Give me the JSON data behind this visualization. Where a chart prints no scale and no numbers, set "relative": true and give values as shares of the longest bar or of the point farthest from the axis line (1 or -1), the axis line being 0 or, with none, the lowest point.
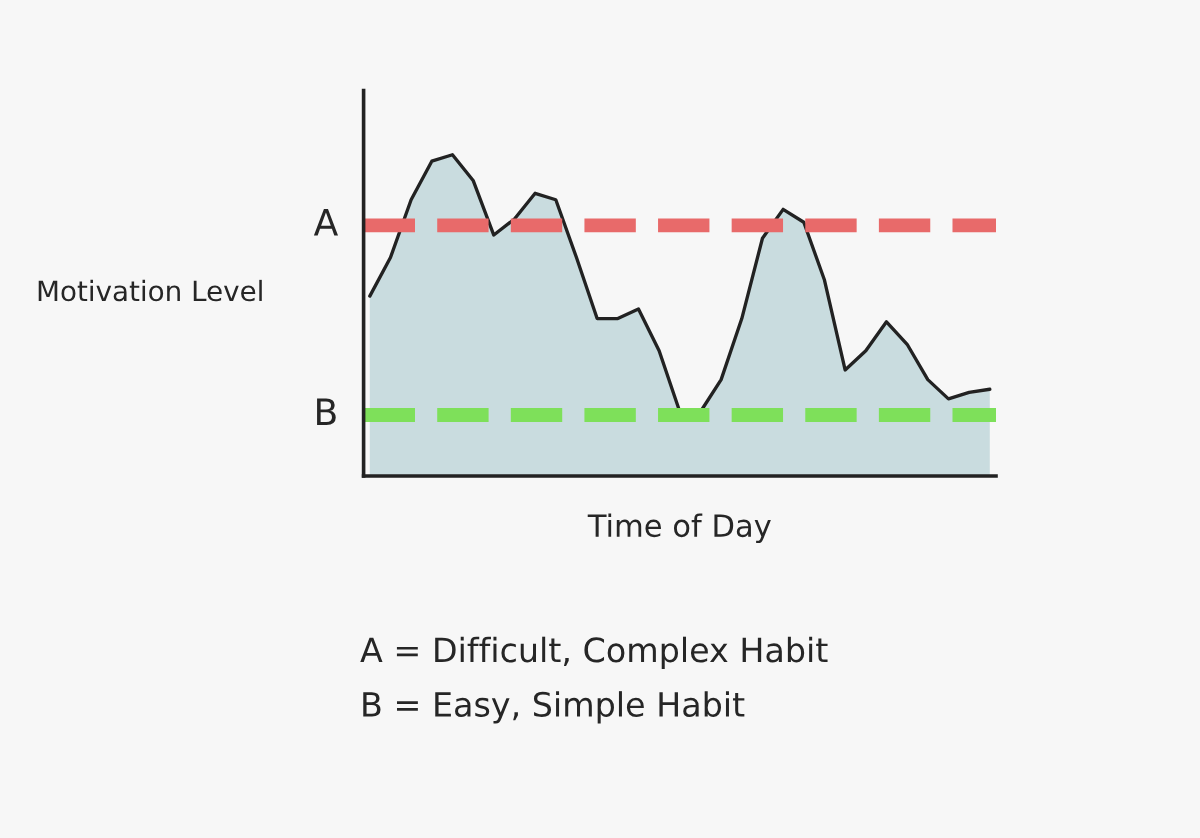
{
  "chart_data": {
    "type": "area",
    "relative": true,
    "xlabel": "Time of Day",
    "ylabel": "Motivation Level",
    "categories": [
      null,
      null,
      null,
      null,
      null,
      null,
      null,
      null,
      null,
      null,
      null,
      null,
      null,
      null,
      null,
      null,
      null,
      null,
      null,
      null,
      null,
      null,
      null,
      null,
      null,
      null,
      null,
      null,
      null,
      null,
      null
    ],
    "series": [
      {
        "color": "#c9dcdf",
        "values": [
          0.56,
          0.68,
          0.86,
          0.98,
          1.0,
          0.92,
          0.75,
          0.8,
          0.88,
          0.86,
          0.68,
          0.49,
          0.49,
          0.52,
          0.39,
          0.2,
          0.2,
          0.3,
          0.49,
          0.74,
          0.83,
          0.79,
          0.61,
          0.33,
          0.39,
          0.48,
          0.41,
          0.3,
          0.24,
          0.26,
          0.27
        ]
      }
    ],
    "ref_lines": [
      {
        "axis": "y",
        "value": 0.78,
        "label": "A",
        "color": "#e86a6a",
        "line_style": "dashed"
      },
      {
        "axis": "y",
        "value": 0.19,
        "label": "B",
        "color": "#7ee05a",
        "line_style": "dashed"
      }
    ],
    "annotations": [
      "A = Difficult, Complex Habit",
      "B = Easy, Simple Habit"
    ],
    "grid": false,
    "legend": false
  }
}
